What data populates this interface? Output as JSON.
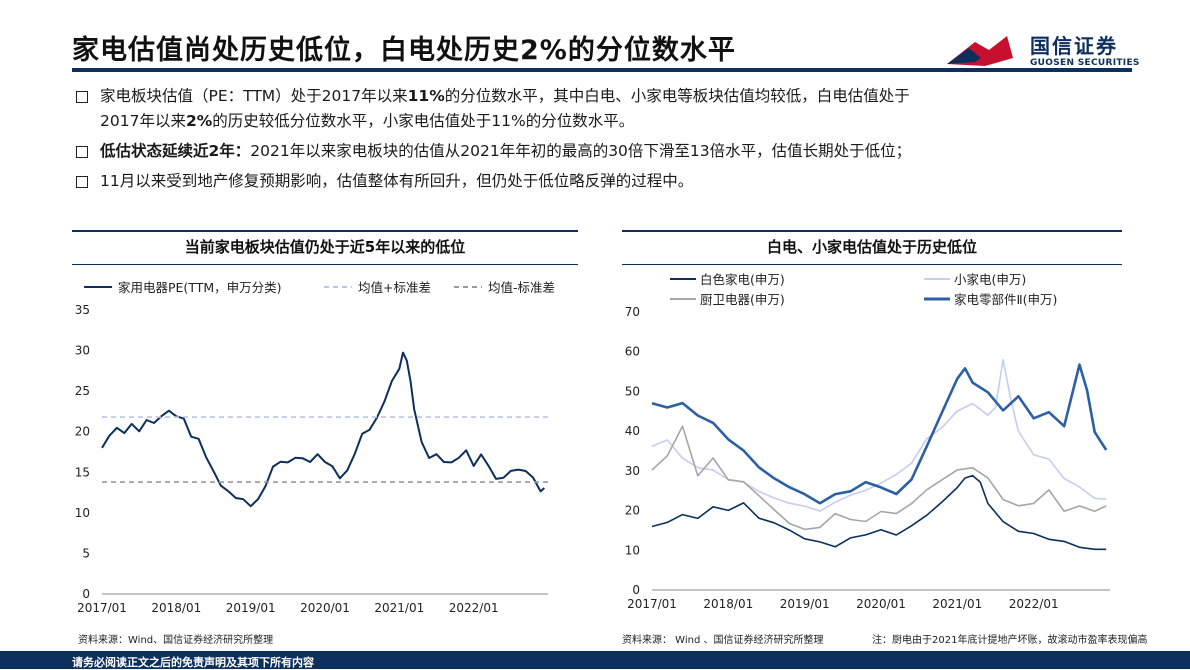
{
  "header": {
    "title": "家电估值尚处历史低位，白电处历史2%的分位数水平",
    "logo_cn": "国信证券",
    "logo_en": "GUOSEN SECURITIES"
  },
  "bullets": [
    {
      "parts": [
        "家电板块估值（PE：TTM）处于2017年以来",
        "11%",
        "的分位数水平，其中白电、小家电等板块估值均较低，白电估值处于"
      ],
      "line2_parts": [
        "2017年以来",
        "2%",
        "的历史较低分位数水平，小家电估值处于11%的分位数水平。"
      ]
    },
    {
      "parts": [
        "低估状态延续近2年：",
        "2021年以来家电板块的估值从2021年年初的最高的30倍下滑至13倍水平，估值长期处于低位；"
      ]
    },
    {
      "parts": [
        "11月以来受到地产修复预期影响，估值整体有所回升，但仍处于低位略反弹的过程中。"
      ]
    }
  ],
  "left_panel": {
    "title": "当前家电板块估值仍处于近5年以来的低位",
    "source": "资料来源：Wind、国信证券经济研究所整理"
  },
  "right_panel": {
    "title": "白电、小家电估值处于历史低位",
    "source": "资料来源： Wind 、国信证券经济研究所整理",
    "note": "注：厨电由于2021年底计提地产坏账，故滚动市盈率表现偏高"
  },
  "footer": {
    "disclaimer": "请务必阅读正文之后的免责声明及其项下所有内容"
  },
  "chart_data": [
    {
      "type": "line",
      "title": "当前家电板块估值仍处于近5年以来的低位",
      "xlabel": "",
      "ylabel": "",
      "x_ticks": [
        "2017/01",
        "2018/01",
        "2019/01",
        "2020/01",
        "2021/01",
        "2022/01"
      ],
      "ylim": [
        0,
        35
      ],
      "y_ticks": [
        0,
        5,
        10,
        15,
        20,
        25,
        30,
        35
      ],
      "legend_position": "top",
      "series": [
        {
          "name": "家用电器PE(TTM，申万分类)",
          "color": "#0d2f5c",
          "style": "solid",
          "x": [
            2017.0,
            2017.1,
            2017.2,
            2017.3,
            2017.4,
            2017.5,
            2017.6,
            2017.7,
            2017.8,
            2017.9,
            2018.0,
            2018.1,
            2018.2,
            2018.3,
            2018.4,
            2018.5,
            2018.6,
            2018.7,
            2018.8,
            2018.9,
            2019.0,
            2019.1,
            2019.2,
            2019.3,
            2019.4,
            2019.5,
            2019.6,
            2019.7,
            2019.8,
            2019.9,
            2020.0,
            2020.1,
            2020.2,
            2020.3,
            2020.4,
            2020.5,
            2020.6,
            2020.7,
            2020.8,
            2020.9,
            2021.0,
            2021.05,
            2021.1,
            2021.15,
            2021.2,
            2021.3,
            2021.4,
            2021.5,
            2021.6,
            2021.7,
            2021.8,
            2021.9,
            2022.0,
            2022.1,
            2022.2,
            2022.3,
            2022.4,
            2022.5,
            2022.6,
            2022.7,
            2022.8,
            2022.9,
            2022.95
          ],
          "y": [
            18,
            19.5,
            20.5,
            19.8,
            21,
            20,
            21.5,
            21,
            22,
            22.5,
            22,
            21.5,
            19.5,
            19,
            17,
            15,
            13.5,
            12.5,
            12,
            11.5,
            11,
            11.5,
            13.5,
            15.5,
            16.5,
            16,
            17,
            16.5,
            16.5,
            17,
            16.5,
            15.5,
            14.5,
            15,
            17.5,
            19.5,
            20.5,
            21.5,
            24,
            26,
            28,
            29.5,
            29,
            26,
            23,
            18.5,
            17,
            17,
            16.5,
            16,
            17,
            17.5,
            16,
            17,
            16,
            14,
            14.5,
            15,
            15.5,
            15,
            14.5,
            12.5,
            13.2
          ]
        },
        {
          "name": "均值+标准差",
          "color": "#b9c4e8",
          "style": "dashed",
          "y_const": 21.8
        },
        {
          "name": "均值-标准差",
          "color": "#999999",
          "style": "dashed",
          "y_const": 13.8
        }
      ]
    },
    {
      "type": "line",
      "title": "白电、小家电估值处于历史低位",
      "xlabel": "",
      "ylabel": "",
      "x_ticks": [
        "2017/01",
        "2018/01",
        "2019/01",
        "2020/01",
        "2021/01",
        "2022/01"
      ],
      "ylim": [
        0,
        70
      ],
      "y_ticks": [
        0,
        10,
        20,
        30,
        40,
        50,
        60,
        70
      ],
      "legend_position": "top",
      "series": [
        {
          "name": "白色家电(申万)",
          "color": "#0d2f5c",
          "x": [
            2017.0,
            2017.2,
            2017.4,
            2017.6,
            2017.8,
            2018.0,
            2018.2,
            2018.4,
            2018.6,
            2018.8,
            2019.0,
            2019.2,
            2019.4,
            2019.6,
            2019.8,
            2020.0,
            2020.2,
            2020.4,
            2020.6,
            2020.8,
            2021.0,
            2021.1,
            2021.2,
            2021.3,
            2021.4,
            2021.6,
            2021.8,
            2022.0,
            2022.2,
            2022.4,
            2022.6,
            2022.8,
            2022.95
          ],
          "y": [
            16,
            17,
            19,
            18,
            21,
            20,
            22,
            18,
            17,
            15,
            13,
            12,
            11,
            13,
            14,
            15,
            14,
            16,
            19,
            22,
            26,
            28,
            29,
            27,
            22,
            17,
            15,
            14,
            13,
            12,
            11,
            10,
            10.5
          ]
        },
        {
          "name": "小家电(申万)",
          "color": "#c5cdf0",
          "x": [
            2017.0,
            2017.2,
            2017.4,
            2017.6,
            2017.8,
            2018.0,
            2018.2,
            2018.4,
            2018.6,
            2018.8,
            2019.0,
            2019.2,
            2019.4,
            2019.6,
            2019.8,
            2020.0,
            2020.2,
            2020.4,
            2020.6,
            2020.8,
            2021.0,
            2021.2,
            2021.4,
            2021.5,
            2021.6,
            2021.7,
            2021.8,
            2022.0,
            2022.2,
            2022.4,
            2022.6,
            2022.8,
            2022.95
          ],
          "y": [
            36,
            38,
            33,
            31,
            30,
            28,
            27,
            25,
            23,
            22,
            21,
            20,
            22,
            24,
            25,
            27,
            29,
            32,
            38,
            41,
            45,
            47,
            44,
            46,
            58,
            48,
            40,
            34,
            33,
            28,
            26,
            23,
            23
          ]
        },
        {
          "name": "厨卫电器(申万)",
          "color": "#a6a6a6",
          "x": [
            2017.0,
            2017.2,
            2017.4,
            2017.6,
            2017.8,
            2018.0,
            2018.2,
            2018.4,
            2018.6,
            2018.8,
            2019.0,
            2019.2,
            2019.4,
            2019.6,
            2019.8,
            2020.0,
            2020.2,
            2020.4,
            2020.6,
            2020.8,
            2021.0,
            2021.2,
            2021.4,
            2021.6,
            2021.8,
            2022.0,
            2022.2,
            2022.4,
            2022.6,
            2022.8,
            2022.95
          ],
          "y": [
            30,
            34,
            41,
            29,
            33,
            28,
            27,
            24,
            20,
            17,
            15,
            16,
            19,
            18,
            17,
            20,
            19,
            22,
            25,
            28,
            30,
            31,
            28,
            23,
            21,
            22,
            25,
            20,
            21,
            20,
            21
          ]
        },
        {
          "name": "家电零部件Ⅱ(申万)",
          "color": "#2b5fa6",
          "x": [
            2017.0,
            2017.2,
            2017.4,
            2017.6,
            2017.8,
            2018.0,
            2018.2,
            2018.4,
            2018.6,
            2018.8,
            2019.0,
            2019.2,
            2019.4,
            2019.6,
            2019.8,
            2020.0,
            2020.2,
            2020.4,
            2020.6,
            2020.8,
            2021.0,
            2021.1,
            2021.2,
            2021.4,
            2021.6,
            2021.8,
            2022.0,
            2022.2,
            2022.4,
            2022.6,
            2022.7,
            2022.8,
            2022.95
          ],
          "y": [
            47,
            46,
            47,
            44,
            42,
            38,
            35,
            31,
            28,
            26,
            24,
            22,
            24,
            25,
            27,
            26,
            24,
            28,
            36,
            45,
            53,
            56,
            52,
            50,
            45,
            49,
            43,
            45,
            41,
            57,
            50,
            40,
            35
          ]
        }
      ]
    }
  ]
}
